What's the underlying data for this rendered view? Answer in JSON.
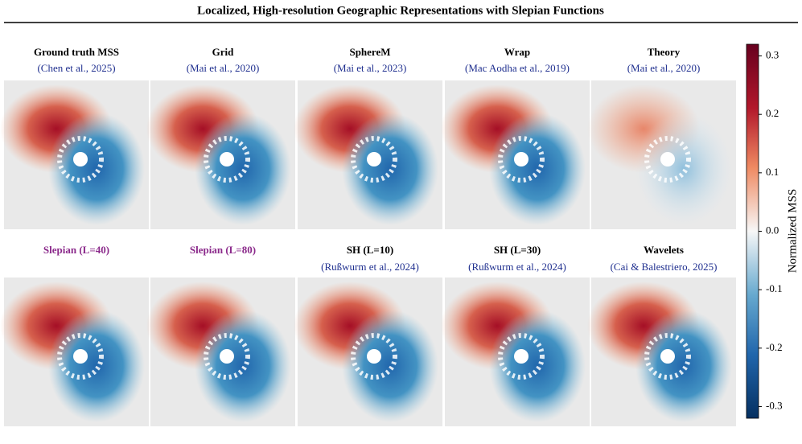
{
  "header": {
    "title": "Localized, High-resolution Geographic Representations with Slepian Functions"
  },
  "panels": [
    {
      "title": "Ground truth MSS",
      "citation": "(Chen et al., 2025)"
    },
    {
      "title": "Grid",
      "citation": "(Mai et al., 2020)"
    },
    {
      "title": "SphereM",
      "citation": "(Mai et al., 2023)"
    },
    {
      "title": "Wrap",
      "citation": "(Mac Aodha et al., 2019)"
    },
    {
      "title": "Theory",
      "citation": "(Mai et al., 2020)"
    },
    {
      "title": "Slepian (L=40)"
    },
    {
      "title": "Slepian (L=80)"
    },
    {
      "title": "SH (L=10)",
      "citation": "(Rußwurm et al., 2024)"
    },
    {
      "title": "SH (L=30)",
      "citation": "(Rußwurm et al., 2024)"
    },
    {
      "title": "Wavelets",
      "citation": "(Cai & Balestriero, 2025)"
    }
  ],
  "colorbar": {
    "label": "Normalized MSS",
    "lim": [
      -0.32,
      0.32
    ],
    "ticks": [
      0.3,
      0.2,
      0.1,
      {
        "value": 0,
        "label": "0.0"
      },
      -0.1,
      -0.2,
      -0.3
    ]
  }
}
